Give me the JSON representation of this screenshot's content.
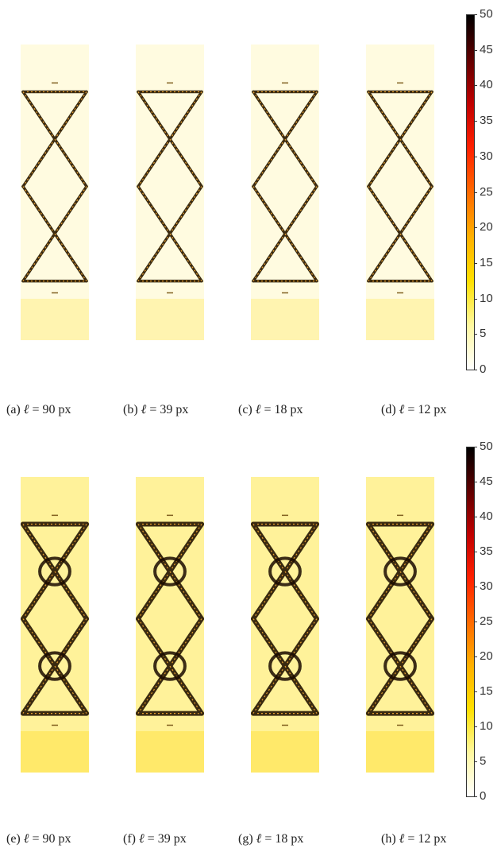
{
  "figure_rows": [
    {
      "row_id": "top",
      "panels": [
        {
          "label": "(a)",
          "ell_symbol": "ℓ",
          "equals": " = ",
          "value": "90",
          "unit": " px",
          "damage": "low"
        },
        {
          "label": "(b)",
          "ell_symbol": "ℓ",
          "equals": " = ",
          "value": "39",
          "unit": " px",
          "damage": "low"
        },
        {
          "label": "(c)",
          "ell_symbol": "ℓ",
          "equals": " = ",
          "value": "18",
          "unit": " px",
          "damage": "low"
        },
        {
          "label": "(d)",
          "ell_symbol": "ℓ",
          "equals": " = ",
          "value": "12",
          "unit": " px",
          "damage": "low"
        }
      ],
      "colorbar": {
        "ticks": [
          "50",
          "45",
          "40",
          "35",
          "30",
          "25",
          "20",
          "15",
          "10",
          "5",
          "0"
        ]
      }
    },
    {
      "row_id": "bottom",
      "panels": [
        {
          "label": "(e)",
          "ell_symbol": "ℓ",
          "equals": " = ",
          "value": "90",
          "unit": " px",
          "damage": "high"
        },
        {
          "label": "(f)",
          "ell_symbol": "ℓ",
          "equals": " = ",
          "value": "39",
          "unit": " px",
          "damage": "high"
        },
        {
          "label": "(g)",
          "ell_symbol": "ℓ",
          "equals": " = ",
          "value": "18",
          "unit": " px",
          "damage": "high"
        },
        {
          "label": "(h)",
          "ell_symbol": "ℓ",
          "equals": " = ",
          "value": "12",
          "unit": " px",
          "damage": "high"
        }
      ],
      "colorbar": {
        "ticks": [
          "50",
          "45",
          "40",
          "35",
          "30",
          "25",
          "20",
          "15",
          "10",
          "5",
          "0"
        ]
      }
    }
  ],
  "colors": {
    "colormap": [
      "#ffffff",
      "#fff8a0",
      "#ffe000",
      "#ffb000",
      "#ff6a00",
      "#ff2000",
      "#c00000",
      "#600000",
      "#000000"
    ],
    "low_bg": "#fffbe0",
    "high_bg": "#fff29a",
    "strut": "#3a2a10"
  }
}
